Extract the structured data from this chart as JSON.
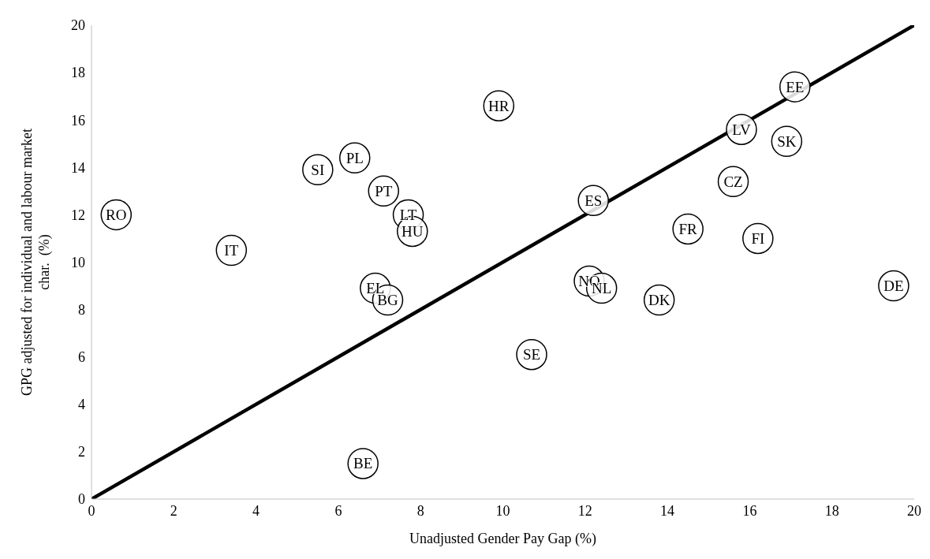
{
  "chart_data": {
    "type": "scatter",
    "xlabel": "Unadjusted Gender Pay Gap (%)",
    "ylabel": "GPG adjusted for individual and labour market char.  (%)",
    "xlim": [
      0,
      20
    ],
    "xticks": [
      0,
      2,
      4,
      6,
      8,
      10,
      12,
      14,
      16,
      18,
      20
    ],
    "ylim": [
      0,
      20
    ],
    "yticks": [
      0,
      2,
      4,
      6,
      8,
      10,
      12,
      14,
      16,
      18,
      20
    ],
    "grid": false,
    "legend": false,
    "marker": "circle",
    "series": [
      {
        "type": "line",
        "color": "#000000",
        "line_style": "solid",
        "marker": "none",
        "x": [
          0,
          20
        ],
        "values": [
          0,
          20
        ]
      },
      {
        "color": "#000000",
        "x": [
          0.6,
          3.4,
          5.5,
          6.4,
          7.1,
          7.7,
          7.8,
          6.9,
          7.2,
          6.6,
          9.9,
          17.1,
          15.8,
          16.9,
          15.6,
          12.2,
          14.5,
          16.2,
          12.1,
          12.4,
          13.8,
          19.5,
          10.7
        ],
        "values": [
          12.0,
          10.5,
          13.9,
          14.4,
          13.0,
          12.0,
          11.3,
          8.9,
          8.4,
          1.5,
          16.6,
          17.4,
          15.6,
          15.1,
          13.4,
          12.6,
          11.4,
          11.0,
          9.2,
          8.9,
          8.4,
          9.0,
          6.1
        ],
        "value_labels": [
          "RO",
          "IT",
          "SI",
          "PL",
          "PT",
          "LT",
          "HU",
          "EL",
          "BG",
          "BE",
          "HR",
          "EE",
          "LV",
          "SK",
          "CZ",
          "ES",
          "FR",
          "FI",
          "NO",
          "NL",
          "DK",
          "DE",
          "SE"
        ]
      }
    ]
  }
}
